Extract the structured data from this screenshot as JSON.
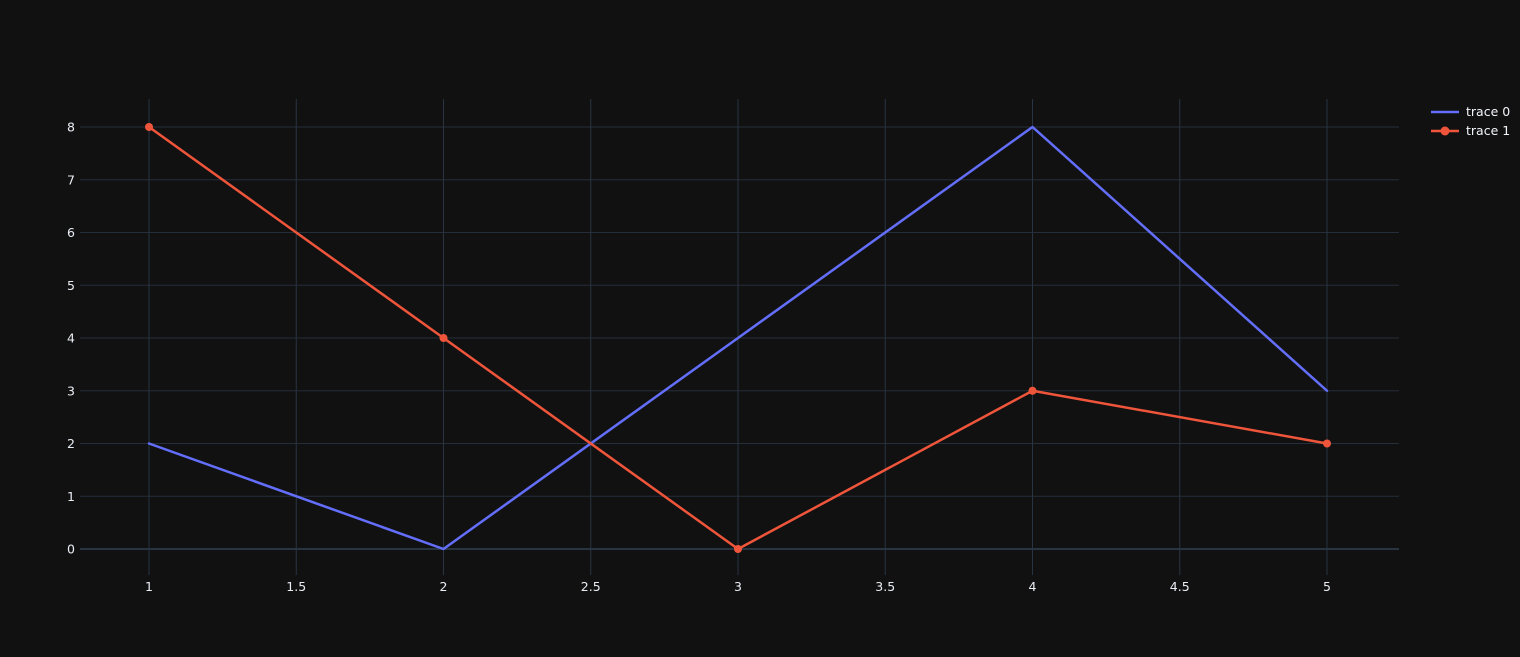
{
  "chart_data": {
    "type": "line",
    "title": "",
    "x": [
      1,
      2,
      3,
      4,
      5
    ],
    "series": [
      {
        "name": "trace 0",
        "mode": "lines",
        "color": "#636efa",
        "x": [
          1,
          2,
          3,
          4,
          5
        ],
        "y": [
          2,
          0,
          4,
          8,
          3
        ]
      },
      {
        "name": "trace 1",
        "mode": "lines+markers",
        "color": "#ef553b",
        "x": [
          1,
          2,
          3,
          4,
          5
        ],
        "y": [
          8,
          4,
          0,
          3,
          2
        ]
      }
    ],
    "xaxis": {
      "label": "",
      "ticks": [
        1,
        1.5,
        2,
        2.5,
        3,
        3.5,
        4,
        4.5,
        5
      ],
      "range": [
        0.77,
        5.24
      ]
    },
    "yaxis": {
      "label": "",
      "ticks": [
        0,
        1,
        2,
        3,
        4,
        5,
        6,
        7,
        8
      ],
      "range": [
        -0.49,
        8.51
      ]
    },
    "grid": true,
    "legend": {
      "position": "top-right",
      "entries": [
        "trace 0",
        "trace 1"
      ]
    },
    "colors": {
      "background": "#111111",
      "gridline": "#283442",
      "zeroline": "#283442",
      "tick_label": "#e9edf4",
      "legend_text": "#f2f5fa"
    }
  }
}
